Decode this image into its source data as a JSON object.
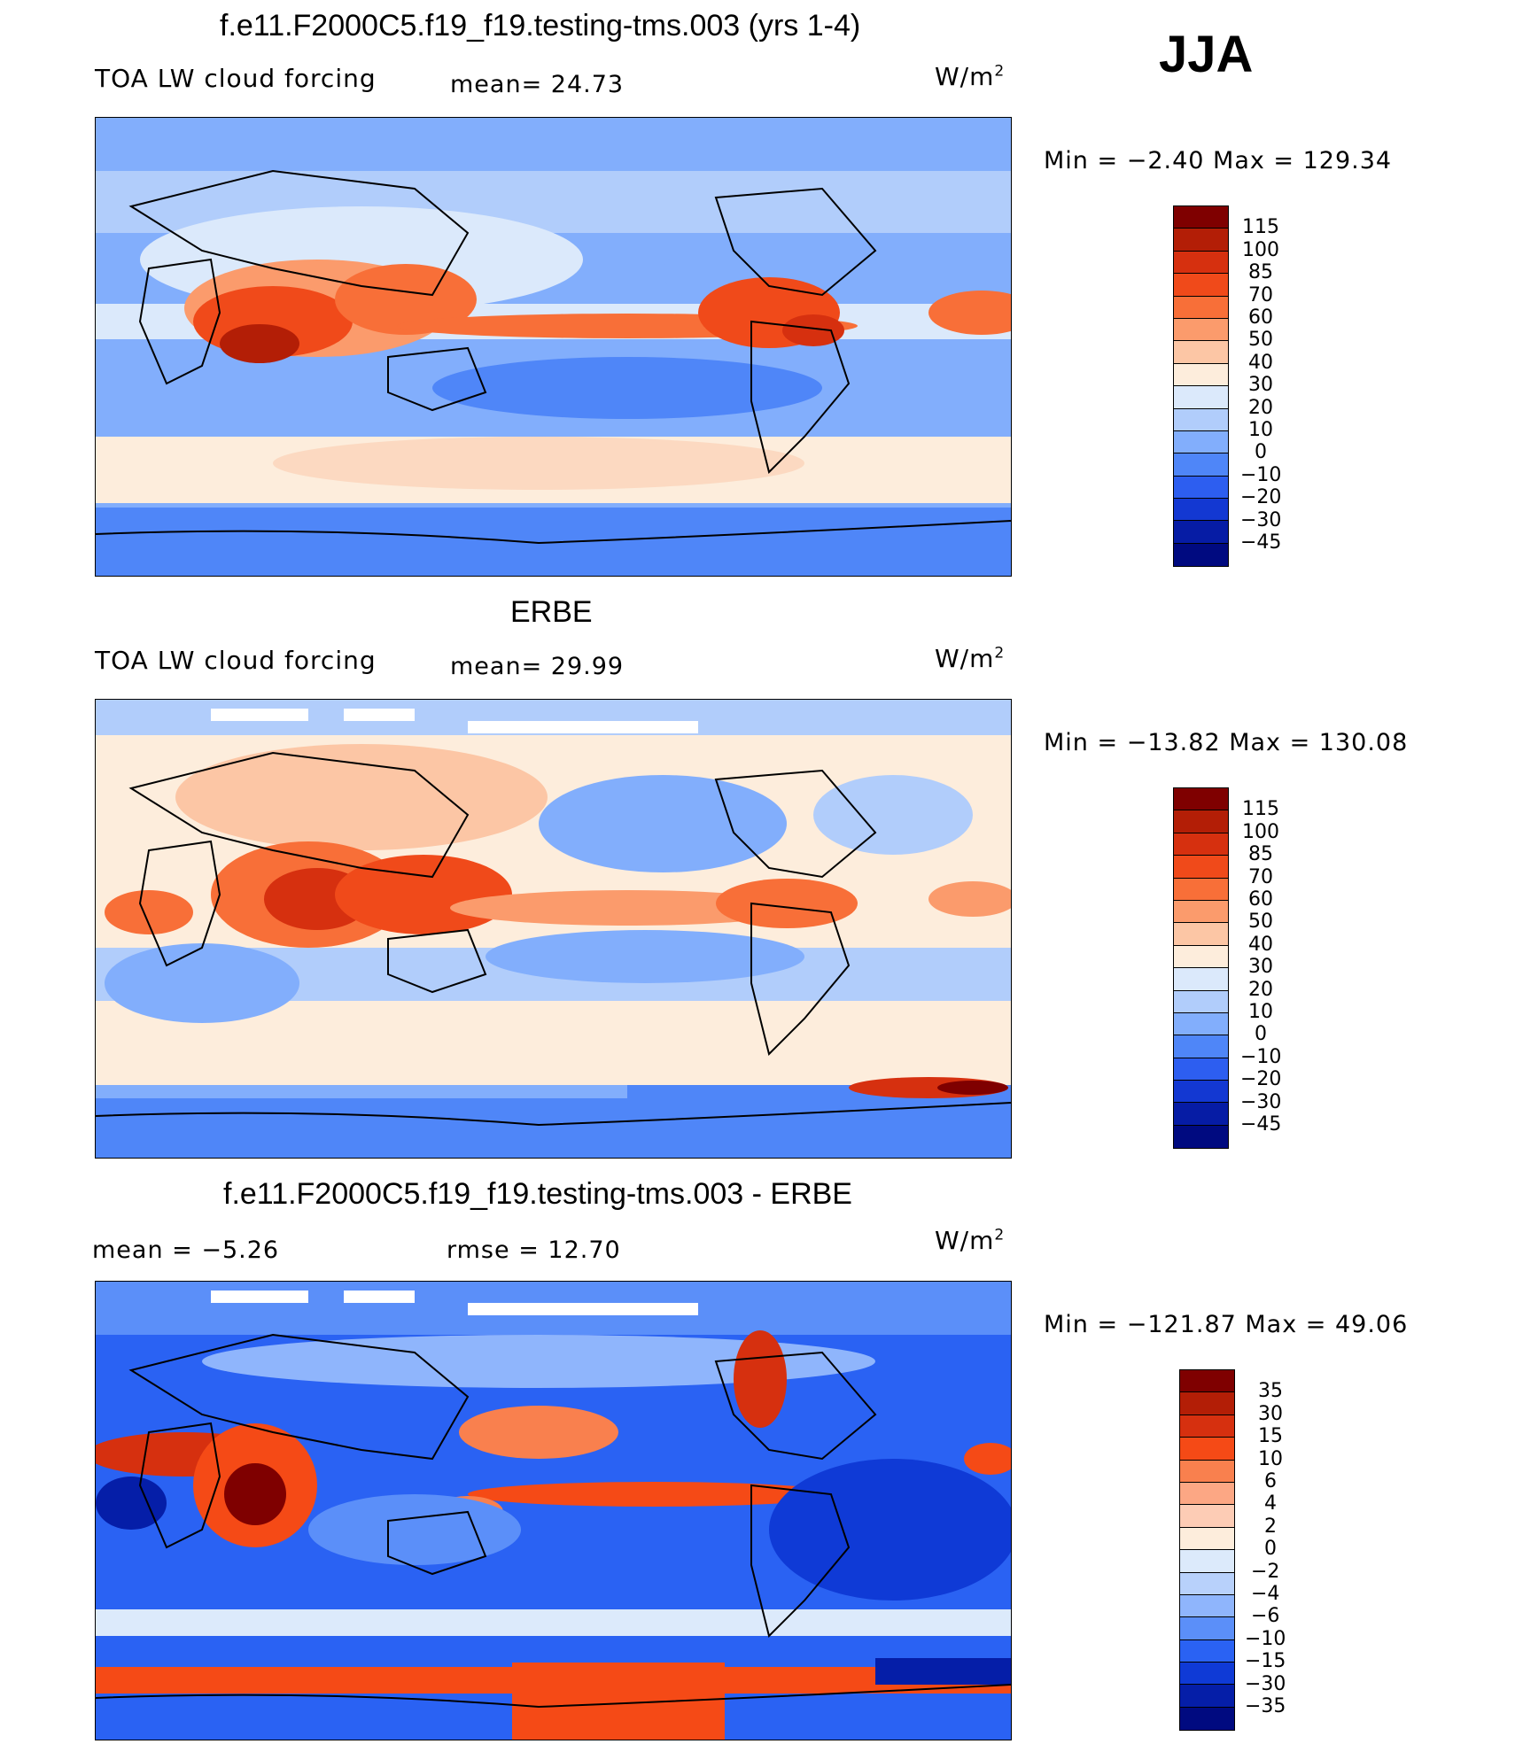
{
  "season": "JJA",
  "panels": [
    {
      "title": "f.e11.F2000C5.f19_f19.testing-tms.003 (yrs 1-4)",
      "left_label": "TOA LW cloud forcing",
      "stat1": "mean=   24.73",
      "stat2": "",
      "units": "W/m",
      "units_sup": "2",
      "minmax": "Min  =   −2.40  Max  =  129.34",
      "colorbar_levels": [
        "115",
        "100",
        "85",
        "70",
        "60",
        "50",
        "40",
        "30",
        "20",
        "10",
        "0",
        "−10",
        "−20",
        "−30",
        "−45"
      ]
    },
    {
      "title": "ERBE",
      "left_label": "TOA LW cloud forcing",
      "stat1": "mean=   29.99",
      "stat2": "",
      "units": "W/m",
      "units_sup": "2",
      "minmax": "Min  = −13.82  Max  =  130.08",
      "colorbar_levels": [
        "115",
        "100",
        "85",
        "70",
        "60",
        "50",
        "40",
        "30",
        "20",
        "10",
        "0",
        "−10",
        "−20",
        "−30",
        "−45"
      ]
    },
    {
      "title": "f.e11.F2000C5.f19_f19.testing-tms.003 - ERBE",
      "left_label": "mean  =   −5.26",
      "stat1": "rmse  =   12.70",
      "stat2": "",
      "units": "W/m",
      "units_sup": "2",
      "minmax": "Min  = −121.87  Max  =   49.06",
      "colorbar_levels": [
        "35",
        "30",
        "15",
        "10",
        "6",
        "4",
        "2",
        "0",
        "−2",
        "−4",
        "−6",
        "−10",
        "−15",
        "−30",
        "−35"
      ]
    }
  ],
  "colors": {
    "scale": [
      "#7f0000",
      "#b31e06",
      "#d6300f",
      "#f04a1a",
      "#f86f38",
      "#fb9b6c",
      "#fcc6a5",
      "#fdeddc",
      "#dbe9fb",
      "#b1cdfb",
      "#82aefc",
      "#4f86f8",
      "#2d5ef0",
      "#1338d2",
      "#061ca5",
      "#000a80"
    ],
    "diff_scale": [
      "#7f0000",
      "#b31e06",
      "#d6300f",
      "#f54a16",
      "#f9804e",
      "#fca784",
      "#fdccb5",
      "#fdeddc",
      "#dceafb",
      "#b8d1fb",
      "#8fb5fc",
      "#5b8ff9",
      "#2a62f3",
      "#0f3ad6",
      "#051ea8",
      "#000a80"
    ]
  }
}
